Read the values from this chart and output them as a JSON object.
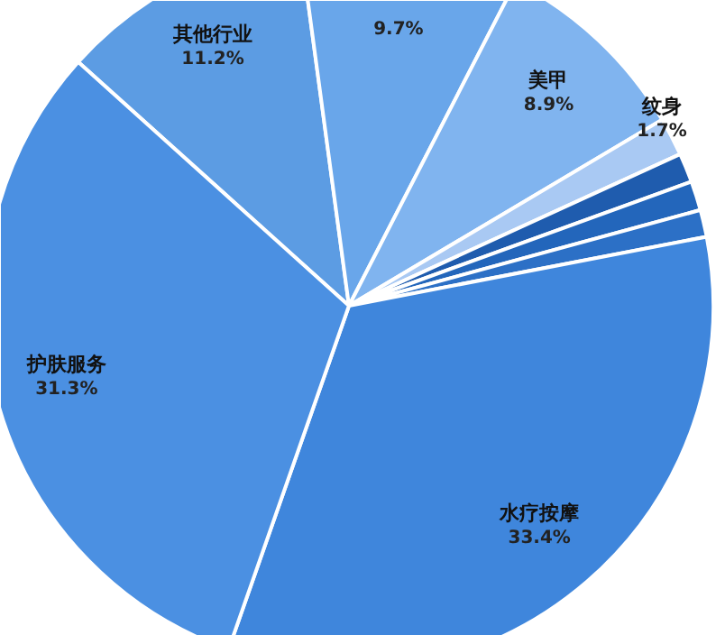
{
  "chart_data": {
    "type": "pie",
    "categories": [
      "其他行业",
      null,
      "美甲",
      "纹身",
      null,
      null,
      null,
      "水疗按摩",
      "护肤服务"
    ],
    "values": [
      11.2,
      9.7,
      8.9,
      1.7,
      1.3,
      1.3,
      1.2,
      33.4,
      31.3
    ],
    "value_labels": [
      "11.2%",
      "9.7%",
      "8.9%",
      "1.7%",
      null,
      null,
      null,
      "33.4%",
      "31.3%"
    ],
    "colors": [
      "#5c9ce3",
      "#69a6ea",
      "#80b4ef",
      "#a9c9f3",
      "#1f5cae",
      "#2366bb",
      "#2c70c6",
      "#3f86dc",
      "#4b90e2"
    ]
  }
}
